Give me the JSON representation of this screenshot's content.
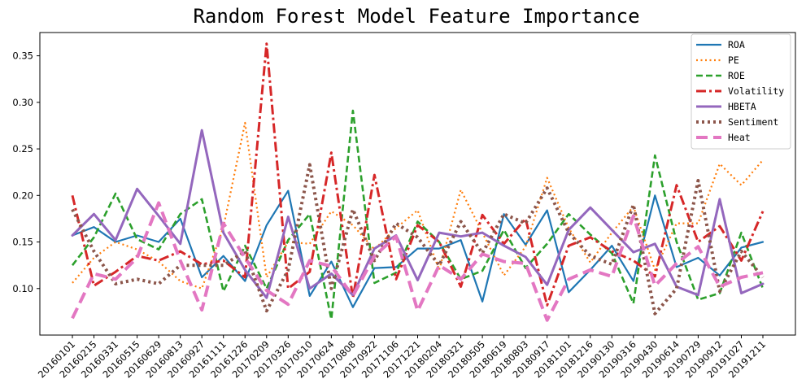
{
  "colors": {
    "ROA": "#1f77b4",
    "PE": "#ff7f0e",
    "ROE": "#2ca02c",
    "Volatility": "#d62728",
    "HBETA": "#9467bd",
    "Sentiment": "#8c564b",
    "Heat": "#e377c2"
  },
  "chart_data": {
    "type": "line",
    "title": "Random Forest Model Feature Importance",
    "xlabel": "",
    "ylabel": "",
    "ylim": [
      0.05,
      0.375
    ],
    "yticks": [
      0.1,
      0.15,
      0.2,
      0.25,
      0.3,
      0.35
    ],
    "ytick_labels": [
      "0.10",
      "0.15",
      "0.20",
      "0.25",
      "0.30",
      "0.35"
    ],
    "grid": false,
    "legend_position": "top-right",
    "x": [
      "20160101",
      "20160215",
      "20160331",
      "20160515",
      "20160629",
      "20160813",
      "20160927",
      "20161111",
      "20161226",
      "20170209",
      "20170326",
      "20170510",
      "20170624",
      "20170808",
      "20170922",
      "20171106",
      "20171221",
      "20180204",
      "20180321",
      "20180505",
      "20180619",
      "20180803",
      "20180917",
      "20181101",
      "20181216",
      "20190130",
      "20190316",
      "20190430",
      "20190614",
      "20190729",
      "20190912",
      "20191027",
      "20191211"
    ],
    "series": [
      {
        "name": "ROA",
        "style": "solid",
        "width": 2.2,
        "values": [
          0.157,
          0.166,
          0.15,
          0.157,
          0.15,
          0.175,
          0.112,
          0.135,
          0.108,
          0.168,
          0.205,
          0.092,
          0.129,
          0.08,
          0.122,
          0.123,
          0.143,
          0.143,
          0.152,
          0.086,
          0.18,
          0.147,
          0.184,
          0.096,
          0.12,
          0.146,
          0.108,
          0.2,
          0.123,
          0.133,
          0.114,
          0.144,
          0.15
        ]
      },
      {
        "name": "PE",
        "style": "dotted",
        "width": 2.2,
        "values": [
          0.106,
          0.133,
          0.15,
          0.142,
          0.129,
          0.108,
          0.1,
          0.166,
          0.278,
          0.112,
          0.15,
          0.148,
          0.183,
          0.168,
          0.142,
          0.165,
          0.184,
          0.12,
          0.206,
          0.16,
          0.114,
          0.145,
          0.219,
          0.165,
          0.128,
          0.16,
          0.188,
          0.12,
          0.17,
          0.17,
          0.234,
          0.211,
          0.238
        ]
      },
      {
        "name": "ROE",
        "style": "dashed",
        "width": 2.6,
        "values": [
          0.125,
          0.155,
          0.202,
          0.153,
          0.142,
          0.18,
          0.196,
          0.097,
          0.146,
          0.1,
          0.152,
          0.18,
          0.067,
          0.291,
          0.106,
          0.117,
          0.172,
          0.15,
          0.11,
          0.119,
          0.163,
          0.122,
          0.148,
          0.18,
          0.158,
          0.138,
          0.084,
          0.243,
          0.15,
          0.088,
          0.095,
          0.16,
          0.1
        ]
      },
      {
        "name": "Volatility",
        "style": "dashdot",
        "width": 3,
        "values": [
          0.2,
          0.103,
          0.118,
          0.135,
          0.13,
          0.14,
          0.126,
          0.13,
          0.112,
          0.363,
          0.1,
          0.118,
          0.246,
          0.09,
          0.222,
          0.11,
          0.168,
          0.15,
          0.102,
          0.179,
          0.148,
          0.175,
          0.082,
          0.146,
          0.155,
          0.14,
          0.13,
          0.113,
          0.211,
          0.15,
          0.167,
          0.13,
          0.183
        ]
      },
      {
        "name": "HBETA",
        "style": "solid",
        "width": 3,
        "values": [
          0.157,
          0.18,
          0.152,
          0.207,
          0.178,
          0.148,
          0.27,
          0.16,
          0.12,
          0.09,
          0.177,
          0.1,
          0.116,
          0.093,
          0.143,
          0.157,
          0.109,
          0.16,
          0.156,
          0.16,
          0.146,
          0.134,
          0.104,
          0.163,
          0.187,
          0.163,
          0.139,
          0.148,
          0.102,
          0.093,
          0.196,
          0.095,
          0.105
        ]
      },
      {
        "name": "Sentiment",
        "style": "dotted-thick",
        "width": 4,
        "values": [
          0.185,
          0.14,
          0.105,
          0.11,
          0.105,
          0.125,
          0.125,
          0.125,
          0.14,
          0.076,
          0.12,
          0.233,
          0.1,
          0.185,
          0.13,
          0.17,
          0.155,
          0.125,
          0.172,
          0.138,
          0.18,
          0.17,
          0.208,
          0.16,
          0.135,
          0.126,
          0.19,
          0.073,
          0.1,
          0.216,
          0.097,
          0.14,
          0.112
        ]
      },
      {
        "name": "Heat",
        "style": "dashed-thick",
        "width": 4,
        "values": [
          0.068,
          0.116,
          0.11,
          0.133,
          0.192,
          0.13,
          0.077,
          0.17,
          0.133,
          0.098,
          0.083,
          0.13,
          0.124,
          0.092,
          0.135,
          0.156,
          0.076,
          0.125,
          0.11,
          0.137,
          0.129,
          0.127,
          0.066,
          0.11,
          0.12,
          0.113,
          0.178,
          0.103,
          0.127,
          0.145,
          0.102,
          0.112,
          0.117
        ]
      }
    ]
  }
}
